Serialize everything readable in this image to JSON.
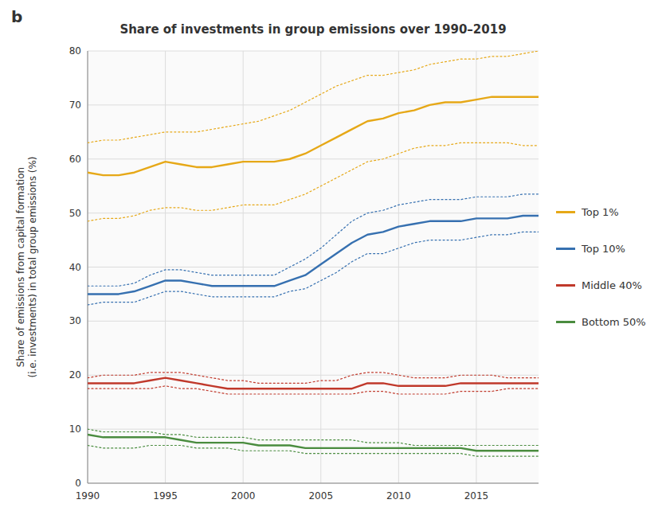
{
  "chart_data": {
    "type": "line",
    "title": "Share of investments in group emissions over 1990–2019",
    "y_label": "Share of emissions from capital formation\n(i.e. investments) in total group emissions (%)",
    "annotations": [
      "b"
    ],
    "x": [
      1990,
      1991,
      1992,
      1993,
      1994,
      1995,
      1996,
      1997,
      1998,
      1999,
      2000,
      2001,
      2002,
      2003,
      2004,
      2005,
      2006,
      2007,
      2008,
      2009,
      2010,
      2011,
      2012,
      2013,
      2014,
      2015,
      2016,
      2017,
      2018,
      2019
    ],
    "xlim": [
      1990,
      2019
    ],
    "xticks": [
      1990,
      1995,
      2000,
      2005,
      2010,
      2015
    ],
    "ylim": [
      0,
      80
    ],
    "yticks": [
      0,
      10,
      20,
      30,
      40,
      50,
      60,
      70,
      80
    ],
    "grid": true,
    "legend": "right",
    "series": [
      {
        "name": "Top 1%",
        "color": "#e6a817",
        "values": [
          57.5,
          57.0,
          57.0,
          57.5,
          58.5,
          59.5,
          59.0,
          58.5,
          58.5,
          59.0,
          59.5,
          59.5,
          59.5,
          60.0,
          61.0,
          62.5,
          64.0,
          65.5,
          67.0,
          67.5,
          68.5,
          69.0,
          70.0,
          70.5,
          70.5,
          71.0,
          71.5,
          71.5,
          71.5,
          71.5
        ],
        "upper": [
          63.0,
          63.5,
          63.5,
          64.0,
          64.5,
          65.0,
          65.0,
          65.0,
          65.5,
          66.0,
          66.5,
          67.0,
          68.0,
          69.0,
          70.5,
          72.0,
          73.5,
          74.5,
          75.5,
          75.5,
          76.0,
          76.5,
          77.5,
          78.0,
          78.5,
          78.5,
          79.0,
          79.0,
          79.5,
          80.0
        ],
        "lower": [
          48.5,
          49.0,
          49.0,
          49.5,
          50.5,
          51.0,
          51.0,
          50.5,
          50.5,
          51.0,
          51.5,
          51.5,
          51.5,
          52.5,
          53.5,
          55.0,
          56.5,
          58.0,
          59.5,
          60.0,
          61.0,
          62.0,
          62.5,
          62.5,
          63.0,
          63.0,
          63.0,
          63.0,
          62.5,
          62.5
        ]
      },
      {
        "name": "Top 10%",
        "color": "#3670b0",
        "values": [
          35.0,
          35.0,
          35.0,
          35.5,
          36.5,
          37.5,
          37.5,
          37.0,
          36.5,
          36.5,
          36.5,
          36.5,
          36.5,
          37.5,
          38.5,
          40.5,
          42.5,
          44.5,
          46.0,
          46.5,
          47.5,
          48.0,
          48.5,
          48.5,
          48.5,
          49.0,
          49.0,
          49.0,
          49.5,
          49.5
        ],
        "upper": [
          36.5,
          36.5,
          36.5,
          37.0,
          38.5,
          39.5,
          39.5,
          39.0,
          38.5,
          38.5,
          38.5,
          38.5,
          38.5,
          40.0,
          41.5,
          43.5,
          46.0,
          48.5,
          50.0,
          50.5,
          51.5,
          52.0,
          52.5,
          52.5,
          52.5,
          53.0,
          53.0,
          53.0,
          53.5,
          53.5
        ],
        "lower": [
          33.0,
          33.5,
          33.5,
          33.5,
          34.5,
          35.5,
          35.5,
          35.0,
          34.5,
          34.5,
          34.5,
          34.5,
          34.5,
          35.5,
          36.0,
          37.5,
          39.0,
          41.0,
          42.5,
          42.5,
          43.5,
          44.5,
          45.0,
          45.0,
          45.0,
          45.5,
          46.0,
          46.0,
          46.5,
          46.5
        ]
      },
      {
        "name": "Middle 40%",
        "color": "#c0392b",
        "values": [
          18.5,
          18.5,
          18.5,
          18.5,
          19.0,
          19.5,
          19.0,
          18.5,
          18.0,
          17.5,
          17.5,
          17.5,
          17.5,
          17.5,
          17.5,
          17.5,
          17.5,
          17.5,
          18.5,
          18.5,
          18.0,
          18.0,
          18.0,
          18.0,
          18.5,
          18.5,
          18.5,
          18.5,
          18.5,
          18.5
        ],
        "upper": [
          19.5,
          20.0,
          20.0,
          20.0,
          20.5,
          20.5,
          20.5,
          20.0,
          19.5,
          19.0,
          19.0,
          18.5,
          18.5,
          18.5,
          18.5,
          19.0,
          19.0,
          20.0,
          20.5,
          20.5,
          20.0,
          19.5,
          19.5,
          19.5,
          20.0,
          20.0,
          20.0,
          19.5,
          19.5,
          19.5
        ],
        "lower": [
          17.5,
          17.5,
          17.5,
          17.5,
          17.5,
          18.0,
          17.5,
          17.5,
          17.0,
          16.5,
          16.5,
          16.5,
          16.5,
          16.5,
          16.5,
          16.5,
          16.5,
          16.5,
          17.0,
          17.0,
          16.5,
          16.5,
          16.5,
          16.5,
          17.0,
          17.0,
          17.0,
          17.5,
          17.5,
          17.5
        ]
      },
      {
        "name": "Bottom 50%",
        "color": "#4a8c3f",
        "values": [
          9.0,
          8.5,
          8.5,
          8.5,
          8.5,
          8.5,
          8.0,
          7.5,
          7.5,
          7.5,
          7.5,
          7.0,
          7.0,
          7.0,
          6.5,
          6.5,
          6.5,
          6.5,
          6.5,
          6.5,
          6.5,
          6.5,
          6.5,
          6.5,
          6.5,
          6.0,
          6.0,
          6.0,
          6.0,
          6.0
        ],
        "upper": [
          10.0,
          9.5,
          9.5,
          9.5,
          9.5,
          9.0,
          9.0,
          8.5,
          8.5,
          8.5,
          8.5,
          8.0,
          8.0,
          8.0,
          8.0,
          8.0,
          8.0,
          8.0,
          7.5,
          7.5,
          7.5,
          7.0,
          7.0,
          7.0,
          7.0,
          7.0,
          7.0,
          7.0,
          7.0,
          7.0
        ],
        "lower": [
          7.0,
          6.5,
          6.5,
          6.5,
          7.0,
          7.0,
          7.0,
          6.5,
          6.5,
          6.5,
          6.0,
          6.0,
          6.0,
          6.0,
          5.5,
          5.5,
          5.5,
          5.5,
          5.5,
          5.5,
          5.5,
          5.5,
          5.5,
          5.5,
          5.5,
          5.0,
          5.0,
          5.0,
          5.0,
          5.0
        ]
      }
    ]
  }
}
